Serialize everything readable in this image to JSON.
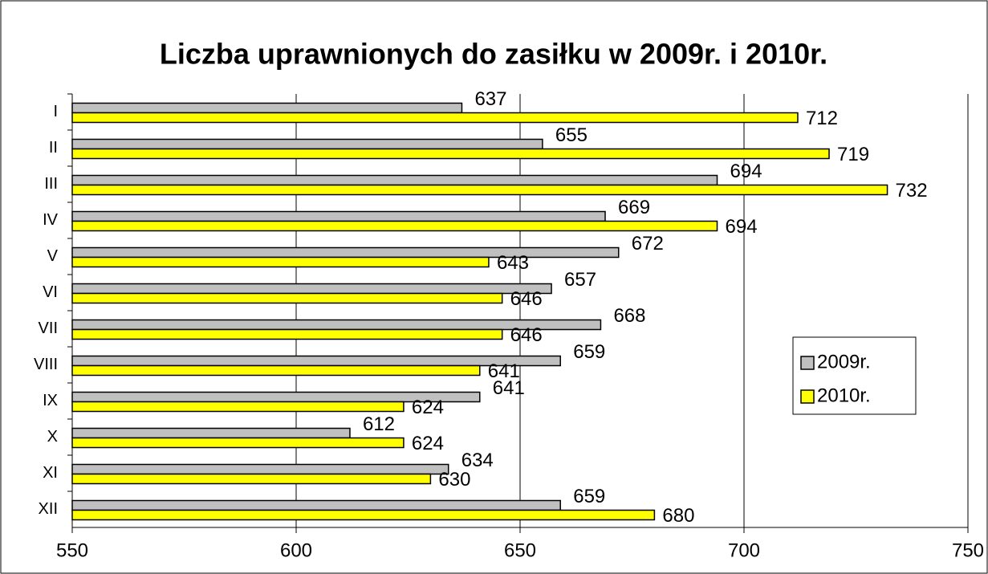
{
  "chart_data": {
    "type": "bar",
    "orientation": "horizontal",
    "title": "Liczba uprawnionych do zasiłku w 2009r. i 2010r.",
    "categories": [
      "I",
      "II",
      "III",
      "IV",
      "V",
      "VI",
      "VII",
      "VIII",
      "IX",
      "X",
      "XI",
      "XII"
    ],
    "series": [
      {
        "name": "2009r.",
        "color": "#c0c0c0",
        "values": [
          637,
          655,
          694,
          669,
          672,
          657,
          668,
          659,
          641,
          612,
          634,
          659
        ]
      },
      {
        "name": "2010r.",
        "color": "#ffff00",
        "values": [
          712,
          719,
          732,
          694,
          643,
          646,
          646,
          641,
          624,
          624,
          630,
          680
        ]
      }
    ],
    "xlim": [
      550,
      750
    ],
    "xticks": [
      550,
      600,
      650,
      700,
      750
    ],
    "grid": true,
    "legend": "right"
  }
}
